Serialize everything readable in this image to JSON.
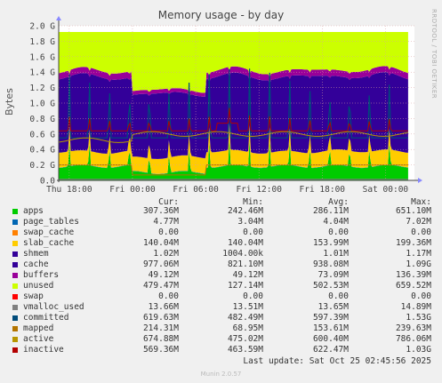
{
  "chart_data": {
    "type": "area",
    "title": "Memory usage - by day",
    "ylabel": "Bytes",
    "ylim": [
      0,
      2000000000
    ],
    "y_ticks": [
      "0.0",
      "0.2 G",
      "0.4 G",
      "0.6 G",
      "0.8 G",
      "1.0 G",
      "1.2 G",
      "1.4 G",
      "1.6 G",
      "1.8 G",
      "2.0 G"
    ],
    "x_ticks": [
      "Thu 18:00",
      "Fri 00:00",
      "Fri 06:00",
      "Fri 12:00",
      "Fri 18:00",
      "Sat 00:00"
    ],
    "x_range_hours": [
      -1,
      32.75
    ],
    "grid": true,
    "side_label": "RRDTOOL / TOBI OETIKER",
    "columns": [
      "Cur:",
      "Min:",
      "Avg:",
      "Max:"
    ],
    "series": [
      {
        "name": "apps",
        "color": "#00cc00",
        "cur": "307.36M",
        "min": "242.46M",
        "avg": "286.11M",
        "max": "651.10M"
      },
      {
        "name": "page_tables",
        "color": "#0066b3",
        "cur": "4.77M",
        "min": "3.04M",
        "avg": "4.04M",
        "max": "7.02M"
      },
      {
        "name": "swap_cache",
        "color": "#ff8000",
        "cur": "0.00",
        "min": "0.00",
        "avg": "0.00",
        "max": "0.00"
      },
      {
        "name": "slab_cache",
        "color": "#ffcc00",
        "cur": "140.04M",
        "min": "140.04M",
        "avg": "153.99M",
        "max": "199.36M"
      },
      {
        "name": "shmem",
        "color": "#330099",
        "cur": "1.02M",
        "min": "1004.00k",
        "avg": "1.01M",
        "max": "1.17M"
      },
      {
        "name": "cache",
        "color": "#330099",
        "cur": "977.06M",
        "min": "821.10M",
        "avg": "938.08M",
        "max": "1.09G"
      },
      {
        "name": "buffers",
        "color": "#990099",
        "cur": "49.12M",
        "min": "49.12M",
        "avg": "73.09M",
        "max": "136.39M"
      },
      {
        "name": "unused",
        "color": "#ccff00",
        "cur": "479.47M",
        "min": "127.14M",
        "avg": "502.53M",
        "max": "659.52M"
      },
      {
        "name": "swap",
        "color": "#ff0000",
        "cur": "0.00",
        "min": "0.00",
        "avg": "0.00",
        "max": "0.00"
      },
      {
        "name": "vmalloc_used",
        "color": "#808080",
        "cur": "13.66M",
        "min": "13.51M",
        "avg": "13.65M",
        "max": "14.89M"
      },
      {
        "name": "committed",
        "color": "#004b7a",
        "cur": "619.63M",
        "min": "482.49M",
        "avg": "597.39M",
        "max": "1.53G"
      },
      {
        "name": "mapped",
        "color": "#b37400",
        "cur": "214.31M",
        "min": "68.95M",
        "avg": "153.61M",
        "max": "239.63M"
      },
      {
        "name": "active",
        "color": "#b89600",
        "cur": "674.88M",
        "min": "475.02M",
        "avg": "600.40M",
        "max": "786.06M"
      },
      {
        "name": "inactive",
        "color": "#b30000",
        "cur": "569.36M",
        "min": "463.59M",
        "avg": "622.47M",
        "max": "1.03G"
      }
    ]
  },
  "footer": {
    "last_update": "Last update: Sat Oct 25 02:45:56 2025",
    "munin": "Munin 2.0.57"
  }
}
